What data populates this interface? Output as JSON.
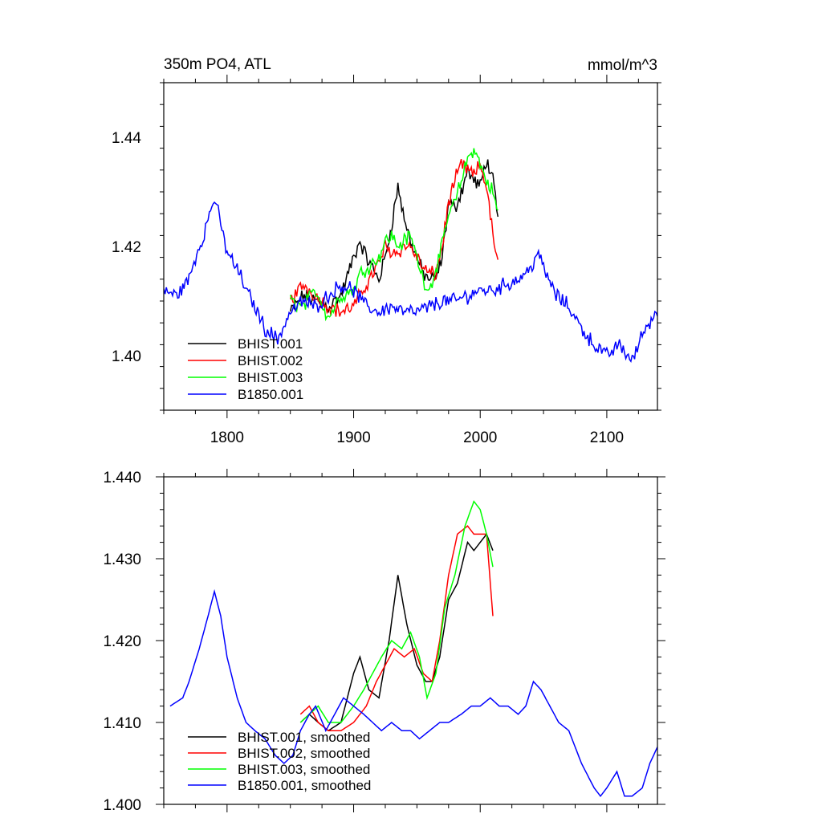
{
  "chart_data": [
    {
      "type": "line",
      "title": "350m PO4, ATL",
      "units_label": "mmol/m^3",
      "xlabel": "",
      "ylabel": "",
      "xlim": [
        1750,
        2140
      ],
      "ylim": [
        1.39,
        1.45
      ],
      "x_ticks": [
        1800,
        1900,
        2000,
        2100
      ],
      "x_tick_labels": [
        "1800",
        "1900",
        "2000",
        "2100"
      ],
      "y_ticks": [
        1.4,
        1.42,
        1.44
      ],
      "y_tick_labels": [
        "1.40",
        "1.42",
        "1.44"
      ],
      "legend_position": "bottom-left",
      "legend": [
        "BHIST.001",
        "BHIST.002",
        "BHIST.003",
        "B1850.001"
      ],
      "series": [
        {
          "name": "BHIST.001",
          "color": "#000000",
          "noisy": true,
          "x": [
            1850,
            1860,
            1870,
            1880,
            1890,
            1900,
            1905,
            1910,
            1920,
            1925,
            1930,
            1935,
            1940,
            1945,
            1950,
            1955,
            1960,
            1965,
            1970,
            1975,
            1980,
            1985,
            1990,
            1995,
            2000,
            2005,
            2010,
            2014
          ],
          "y": [
            1.408,
            1.411,
            1.41,
            1.409,
            1.411,
            1.418,
            1.421,
            1.418,
            1.414,
            1.418,
            1.424,
            1.431,
            1.425,
            1.421,
            1.418,
            1.415,
            1.414,
            1.414,
            1.418,
            1.428,
            1.427,
            1.43,
            1.434,
            1.432,
            1.431,
            1.436,
            1.432,
            1.425
          ]
        },
        {
          "name": "BHIST.002",
          "color": "#ff0000",
          "noisy": true,
          "x": [
            1850,
            1860,
            1870,
            1880,
            1890,
            1900,
            1910,
            1920,
            1925,
            1930,
            1935,
            1940,
            1945,
            1950,
            1955,
            1960,
            1965,
            1970,
            1975,
            1980,
            1985,
            1990,
            1995,
            2000,
            2005,
            2010,
            2014
          ],
          "y": [
            1.41,
            1.413,
            1.411,
            1.409,
            1.408,
            1.409,
            1.413,
            1.417,
            1.42,
            1.419,
            1.419,
            1.42,
            1.42,
            1.418,
            1.416,
            1.415,
            1.415,
            1.42,
            1.428,
            1.432,
            1.435,
            1.434,
            1.433,
            1.435,
            1.431,
            1.422,
            1.417
          ]
        },
        {
          "name": "BHIST.003",
          "color": "#00ff00",
          "noisy": true,
          "x": [
            1850,
            1860,
            1870,
            1880,
            1890,
            1900,
            1905,
            1910,
            1920,
            1925,
            1930,
            1935,
            1940,
            1945,
            1950,
            1955,
            1960,
            1965,
            1970,
            1975,
            1980,
            1985,
            1990,
            1995,
            2000,
            2005,
            2010,
            2014
          ],
          "y": [
            1.41,
            1.409,
            1.412,
            1.407,
            1.411,
            1.412,
            1.415,
            1.416,
            1.418,
            1.421,
            1.422,
            1.42,
            1.421,
            1.422,
            1.418,
            1.414,
            1.412,
            1.416,
            1.42,
            1.426,
            1.428,
            1.432,
            1.436,
            1.438,
            1.435,
            1.432,
            1.43,
            1.426
          ]
        },
        {
          "name": "B1850.001",
          "color": "#0000ff",
          "noisy": true,
          "x": [
            1750,
            1760,
            1770,
            1775,
            1780,
            1785,
            1790,
            1795,
            1800,
            1805,
            1810,
            1815,
            1820,
            1830,
            1840,
            1850,
            1860,
            1870,
            1880,
            1890,
            1900,
            1910,
            1920,
            1930,
            1940,
            1950,
            1960,
            1970,
            1980,
            1990,
            2000,
            2010,
            2020,
            2030,
            2040,
            2045,
            2050,
            2060,
            2070,
            2080,
            2090,
            2100,
            2110,
            2120,
            2130,
            2140
          ],
          "y": [
            1.412,
            1.411,
            1.414,
            1.418,
            1.421,
            1.425,
            1.429,
            1.424,
            1.419,
            1.417,
            1.415,
            1.412,
            1.41,
            1.405,
            1.403,
            1.408,
            1.41,
            1.409,
            1.411,
            1.413,
            1.412,
            1.409,
            1.408,
            1.409,
            1.408,
            1.408,
            1.409,
            1.41,
            1.41,
            1.411,
            1.412,
            1.412,
            1.413,
            1.414,
            1.416,
            1.419,
            1.416,
            1.411,
            1.409,
            1.405,
            1.402,
            1.4,
            1.402,
            1.399,
            1.405,
            1.408
          ]
        }
      ]
    },
    {
      "type": "line",
      "title": "",
      "xlabel": "",
      "ylabel": "",
      "xlim": [
        1750,
        2140
      ],
      "ylim": [
        1.4,
        1.44
      ],
      "x_ticks": [
        1800,
        1900,
        2000,
        2100
      ],
      "x_tick_labels": [
        "",
        "",
        "",
        ""
      ],
      "y_ticks": [
        1.4,
        1.41,
        1.42,
        1.43,
        1.44
      ],
      "y_tick_labels": [
        "1.400",
        "1.410",
        "1.420",
        "1.430",
        "1.440"
      ],
      "legend_position": "bottom-left",
      "legend": [
        "BHIST.001, smoothed",
        "BHIST.002, smoothed",
        "BHIST.003, smoothed",
        "B1850.001, smoothed"
      ],
      "series": [
        {
          "name": "BHIST.001, smoothed",
          "color": "#000000",
          "x": [
            1858,
            1865,
            1872,
            1880,
            1890,
            1900,
            1905,
            1912,
            1920,
            1928,
            1935,
            1942,
            1950,
            1957,
            1962,
            1968,
            1975,
            1982,
            1990,
            1995,
            2000,
            2005,
            2010
          ],
          "y": [
            1.41,
            1.411,
            1.41,
            1.409,
            1.41,
            1.416,
            1.418,
            1.414,
            1.413,
            1.42,
            1.428,
            1.422,
            1.417,
            1.415,
            1.415,
            1.418,
            1.425,
            1.427,
            1.432,
            1.431,
            1.432,
            1.433,
            1.431
          ]
        },
        {
          "name": "BHIST.002, smoothed",
          "color": "#ff0000",
          "x": [
            1858,
            1865,
            1872,
            1880,
            1890,
            1900,
            1910,
            1918,
            1925,
            1932,
            1940,
            1948,
            1955,
            1962,
            1968,
            1975,
            1982,
            1990,
            1995,
            2000,
            2005,
            2010
          ],
          "y": [
            1.411,
            1.412,
            1.41,
            1.409,
            1.409,
            1.41,
            1.412,
            1.415,
            1.417,
            1.419,
            1.418,
            1.419,
            1.416,
            1.415,
            1.42,
            1.428,
            1.433,
            1.434,
            1.433,
            1.433,
            1.433,
            1.423
          ]
        },
        {
          "name": "BHIST.003, smoothed",
          "color": "#00ff00",
          "x": [
            1858,
            1865,
            1872,
            1880,
            1890,
            1900,
            1908,
            1915,
            1922,
            1930,
            1938,
            1945,
            1952,
            1958,
            1965,
            1972,
            1980,
            1988,
            1995,
            2000,
            2005,
            2010
          ],
          "y": [
            1.41,
            1.411,
            1.412,
            1.41,
            1.41,
            1.412,
            1.414,
            1.416,
            1.418,
            1.42,
            1.419,
            1.421,
            1.418,
            1.413,
            1.416,
            1.424,
            1.428,
            1.434,
            1.437,
            1.436,
            1.433,
            1.429
          ]
        },
        {
          "name": "B1850.001, smoothed",
          "color": "#0000ff",
          "x": [
            1755,
            1765,
            1770,
            1778,
            1785,
            1790,
            1795,
            1800,
            1808,
            1815,
            1822,
            1830,
            1838,
            1845,
            1852,
            1858,
            1865,
            1870,
            1878,
            1885,
            1892,
            1900,
            1908,
            1915,
            1922,
            1930,
            1938,
            1945,
            1952,
            1960,
            1968,
            1975,
            1985,
            1993,
            2000,
            2008,
            2015,
            2022,
            2030,
            2036,
            2042,
            2048,
            2055,
            2062,
            2070,
            2080,
            2090,
            2095,
            2100,
            2108,
            2114,
            2120,
            2128,
            2134,
            2140
          ],
          "y": [
            1.412,
            1.413,
            1.415,
            1.419,
            1.423,
            1.426,
            1.423,
            1.418,
            1.413,
            1.41,
            1.409,
            1.408,
            1.406,
            1.405,
            1.406,
            1.409,
            1.411,
            1.412,
            1.409,
            1.411,
            1.413,
            1.412,
            1.411,
            1.41,
            1.409,
            1.41,
            1.409,
            1.409,
            1.408,
            1.409,
            1.41,
            1.41,
            1.411,
            1.412,
            1.412,
            1.413,
            1.412,
            1.412,
            1.411,
            1.412,
            1.415,
            1.414,
            1.412,
            1.41,
            1.409,
            1.405,
            1.402,
            1.401,
            1.402,
            1.404,
            1.401,
            1.401,
            1.402,
            1.405,
            1.407
          ]
        }
      ]
    }
  ]
}
